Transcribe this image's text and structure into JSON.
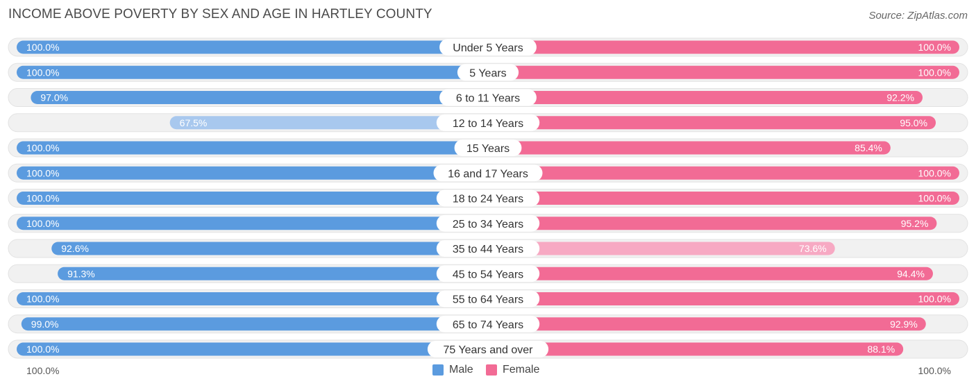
{
  "header": {
    "title": "INCOME ABOVE POVERTY BY SEX AND AGE IN HARTLEY COUNTY",
    "source": "Source: ZipAtlas.com"
  },
  "colors": {
    "male_strong": "#5b9bdf",
    "male_light": "#a8c8ee",
    "female_strong": "#f26b95",
    "female_light": "#f7a9c3",
    "track": "#f1f1f1"
  },
  "legend": {
    "male_label": "Male",
    "female_label": "Female",
    "axis_left": "100.0%",
    "axis_right": "100.0%"
  },
  "chart_data": {
    "type": "bar",
    "orientation": "horizontal-diverging",
    "title": "INCOME ABOVE POVERTY BY SEX AND AGE IN HARTLEY COUNTY",
    "xlim": [
      0,
      100
    ],
    "categories": [
      "Under 5 Years",
      "5 Years",
      "6 to 11 Years",
      "12 to 14 Years",
      "15 Years",
      "16 and 17 Years",
      "18 to 24 Years",
      "25 to 34 Years",
      "35 to 44 Years",
      "45 to 54 Years",
      "55 to 64 Years",
      "65 to 74 Years",
      "75 Years and over"
    ],
    "series": [
      {
        "name": "Male",
        "values": [
          100.0,
          100.0,
          97.0,
          67.5,
          100.0,
          100.0,
          100.0,
          100.0,
          92.6,
          91.3,
          100.0,
          99.0,
          100.0
        ],
        "labels": [
          "100.0%",
          "100.0%",
          "97.0%",
          "67.5%",
          "100.0%",
          "100.0%",
          "100.0%",
          "100.0%",
          "92.6%",
          "91.3%",
          "100.0%",
          "99.0%",
          "100.0%"
        ]
      },
      {
        "name": "Female",
        "values": [
          100.0,
          100.0,
          92.2,
          95.0,
          85.4,
          100.0,
          100.0,
          95.2,
          73.6,
          94.4,
          100.0,
          92.9,
          88.1
        ],
        "labels": [
          "100.0%",
          "100.0%",
          "92.2%",
          "95.0%",
          "85.4%",
          "100.0%",
          "100.0%",
          "95.2%",
          "73.6%",
          "94.4%",
          "100.0%",
          "92.9%",
          "88.1%"
        ]
      }
    ]
  }
}
